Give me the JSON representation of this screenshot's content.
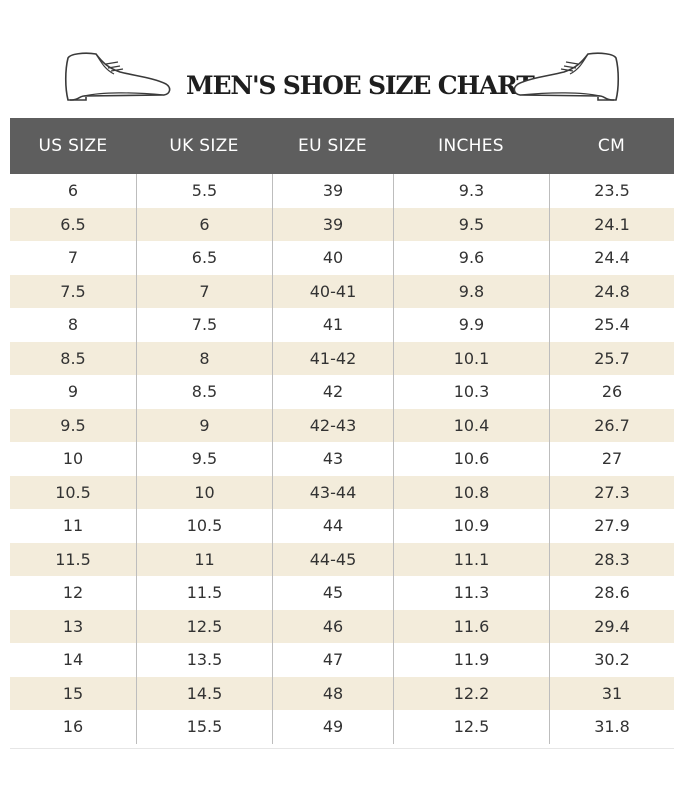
{
  "title": "MEN'S SHOE SIZE CHART",
  "icons": {
    "left": "shoe-icon",
    "right": "shoe-icon"
  },
  "colors": {
    "header_bg": "#5e5e5e",
    "stripe": "#f3ecdb",
    "text": "#333333"
  },
  "columns": [
    "US SIZE",
    "UK SIZE",
    "EU SIZE",
    "INCHES",
    "CM"
  ],
  "rows": [
    [
      "6",
      "5.5",
      "39",
      "9.3",
      "23.5"
    ],
    [
      "6.5",
      "6",
      "39",
      "9.5",
      "24.1"
    ],
    [
      "7",
      "6.5",
      "40",
      "9.6",
      "24.4"
    ],
    [
      "7.5",
      "7",
      "40-41",
      "9.8",
      "24.8"
    ],
    [
      "8",
      "7.5",
      "41",
      "9.9",
      "25.4"
    ],
    [
      "8.5",
      "8",
      "41-42",
      "10.1",
      "25.7"
    ],
    [
      "9",
      "8.5",
      "42",
      "10.3",
      "26"
    ],
    [
      "9.5",
      "9",
      "42-43",
      "10.4",
      "26.7"
    ],
    [
      "10",
      "9.5",
      "43",
      "10.6",
      "27"
    ],
    [
      "10.5",
      "10",
      "43-44",
      "10.8",
      "27.3"
    ],
    [
      "11",
      "10.5",
      "44",
      "10.9",
      "27.9"
    ],
    [
      "11.5",
      "11",
      "44-45",
      "11.1",
      "28.3"
    ],
    [
      "12",
      "11.5",
      "45",
      "11.3",
      "28.6"
    ],
    [
      "13",
      "12.5",
      "46",
      "11.6",
      "29.4"
    ],
    [
      "14",
      "13.5",
      "47",
      "11.9",
      "30.2"
    ],
    [
      "15",
      "14.5",
      "48",
      "12.2",
      "31"
    ],
    [
      "16",
      "15.5",
      "49",
      "12.5",
      "31.8"
    ]
  ]
}
